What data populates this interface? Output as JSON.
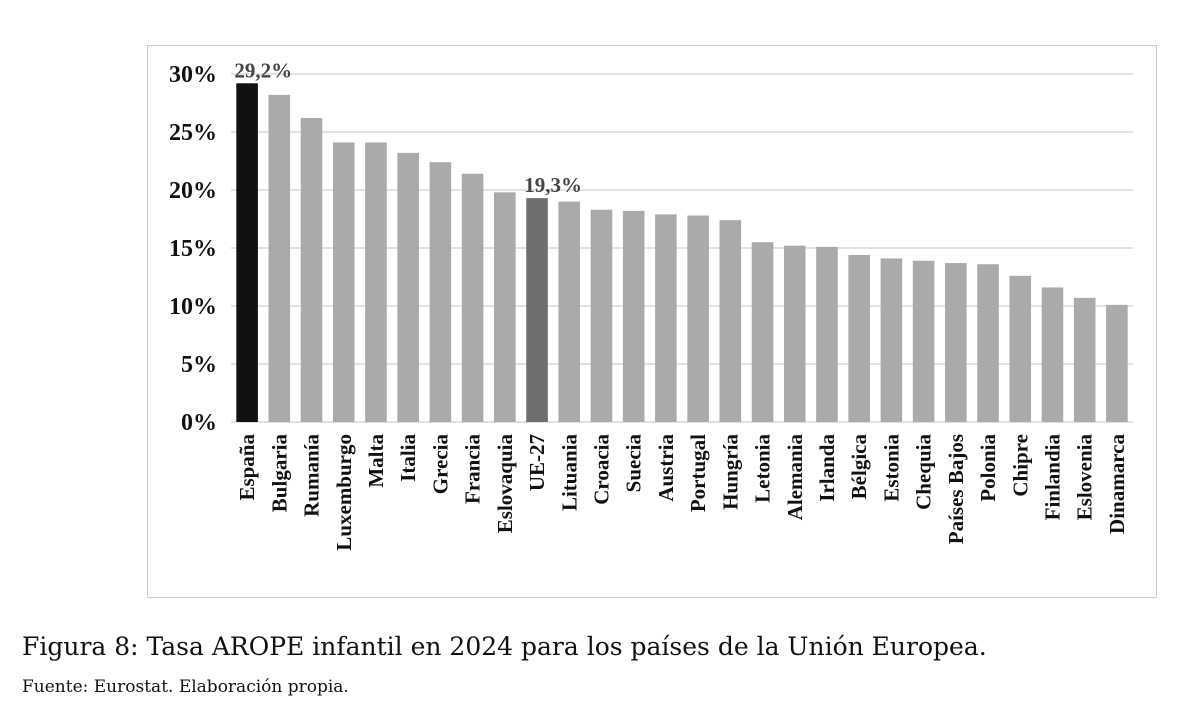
{
  "chart_data": {
    "type": "bar",
    "categories": [
      "España",
      "Bulgaria",
      "Rumanía",
      "Luxemburgo",
      "Malta",
      "Italia",
      "Grecia",
      "Francia",
      "Eslovaquia",
      "UE-27",
      "Lituania",
      "Croacia",
      "Suecia",
      "Austria",
      "Portugal",
      "Hungría",
      "Letonia",
      "Alemania",
      "Irlanda",
      "Bélgica",
      "Estonia",
      "Chequia",
      "Países Bajos",
      "Polonia",
      "Chipre",
      "Finlandia",
      "Eslovenia",
      "Dinamarca"
    ],
    "values": [
      29.2,
      28.2,
      26.2,
      24.1,
      24.1,
      23.2,
      22.4,
      21.4,
      19.8,
      19.3,
      19.0,
      18.3,
      18.2,
      17.9,
      17.8,
      17.4,
      15.5,
      15.2,
      15.1,
      14.4,
      14.1,
      13.9,
      13.7,
      13.6,
      12.6,
      11.6,
      10.7,
      10.1
    ],
    "bar_colors": [
      "#111111",
      "#aaaaaa",
      "#aaaaaa",
      "#aaaaaa",
      "#aaaaaa",
      "#aaaaaa",
      "#aaaaaa",
      "#aaaaaa",
      "#aaaaaa",
      "#6e6e6e",
      "#aaaaaa",
      "#aaaaaa",
      "#aaaaaa",
      "#aaaaaa",
      "#aaaaaa",
      "#aaaaaa",
      "#aaaaaa",
      "#aaaaaa",
      "#aaaaaa",
      "#aaaaaa",
      "#aaaaaa",
      "#aaaaaa",
      "#aaaaaa",
      "#aaaaaa",
      "#aaaaaa",
      "#aaaaaa",
      "#aaaaaa",
      "#aaaaaa"
    ],
    "data_labels": [
      {
        "category": "España",
        "text": "29,2%"
      },
      {
        "category": "UE-27",
        "text": "19,3%"
      }
    ],
    "yticks": [
      {
        "value": 0,
        "label": "0%"
      },
      {
        "value": 5,
        "label": "5%"
      },
      {
        "value": 10,
        "label": "10%"
      },
      {
        "value": 15,
        "label": "15%"
      },
      {
        "value": 20,
        "label": "20%"
      },
      {
        "value": 25,
        "label": "25%"
      },
      {
        "value": 30,
        "label": "30%"
      }
    ],
    "ylim": [
      0,
      30
    ],
    "grid": true,
    "title": "",
    "xlabel": "",
    "ylabel": ""
  },
  "caption": "Figura 8: Tasa AROPE infantil en 2024 para los países de la Unión Europea.",
  "source": "Fuente: Eurostat. Elaboración propia."
}
